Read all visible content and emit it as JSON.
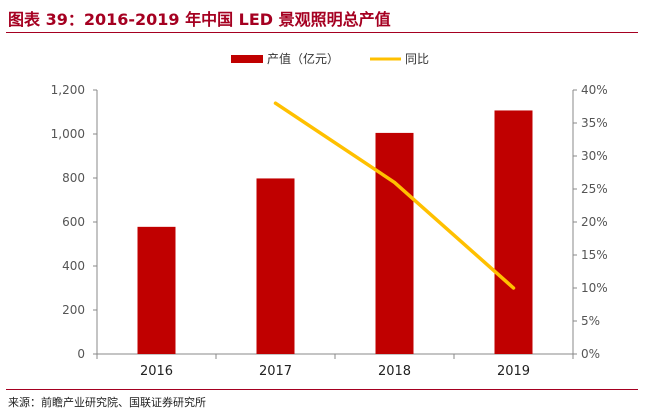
{
  "figure": {
    "title": "图表 39：2016-2019 年中国 LED 景观照明总产值",
    "source": "来源：前瞻产业研究院、国联证券研究所"
  },
  "colors": {
    "bar": "#c00000",
    "line": "#ffc000",
    "axis": "#888888",
    "text": "#555555",
    "accent": "#a50021"
  },
  "chart_data": {
    "type": "bar",
    "title": "2016-2019 年中国 LED 景观照明总产值",
    "categories": [
      "2016",
      "2017",
      "2018",
      "2019"
    ],
    "series": [
      {
        "name": "产值（亿元）",
        "type": "bar",
        "axis": "left",
        "values": [
          578,
          798,
          1005,
          1107
        ]
      },
      {
        "name": "同比",
        "type": "line",
        "axis": "right",
        "values": [
          null,
          38,
          26,
          10
        ]
      }
    ],
    "y_left": {
      "lim": [
        0,
        1200
      ],
      "ticks": [
        0,
        200,
        400,
        600,
        800,
        1000,
        1200
      ],
      "tick_labels": [
        "0",
        "200",
        "400",
        "600",
        "800",
        "1,000",
        "1,200"
      ]
    },
    "y_right": {
      "lim": [
        0,
        40
      ],
      "ticks": [
        0,
        5,
        10,
        15,
        20,
        25,
        30,
        35,
        40
      ],
      "tick_labels": [
        "0%",
        "5%",
        "10%",
        "15%",
        "20%",
        "25%",
        "30%",
        "35%",
        "40%"
      ]
    },
    "legend": "top-center",
    "grid": false
  }
}
